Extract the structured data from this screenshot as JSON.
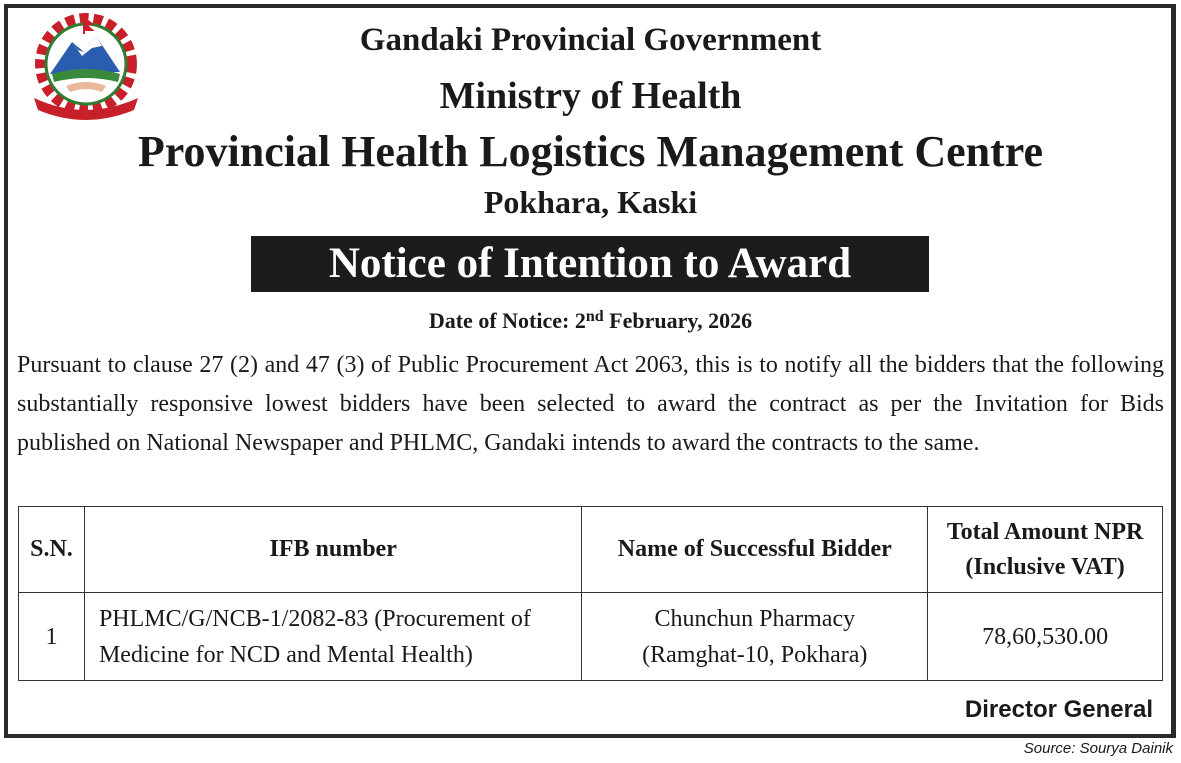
{
  "header": {
    "government": "Gandaki Provincial Government",
    "ministry": "Ministry of Health",
    "office": "Provincial Health Logistics Management Centre",
    "location": "Pokhara, Kaski"
  },
  "notice_title": "Notice of Intention to Award",
  "date": {
    "label": "Date of Notice: 2",
    "suffix": "nd",
    "rest": " February, 2026"
  },
  "body": "Pursuant to clause 27 (2) and 47 (3) of Public Procurement Act 2063, this is to notify all the bidders that the following substantially responsive lowest bidders have been selected to award the contract as per the Invitation for Bids published on National Newspaper and PHLMC, Gandaki intends to award the contracts to the same.",
  "table": {
    "headers": [
      "S.N.",
      "IFB number",
      "Name of Successful Bidder",
      "Total Amount NPR (Inclusive VAT)"
    ],
    "rows": [
      {
        "sn": "1",
        "ifb": "PHLMC/G/NCB-1/2082-83 (Procurement of Medicine for NCD and Mental Health)",
        "bidder": "Chunchun Pharmacy (Ramghat-10, Pokhara)",
        "amount": "78,60,530.00"
      }
    ]
  },
  "signatory": "Director General",
  "source": "Source: Sourya Dainik",
  "emblem": "nepal-emblem"
}
